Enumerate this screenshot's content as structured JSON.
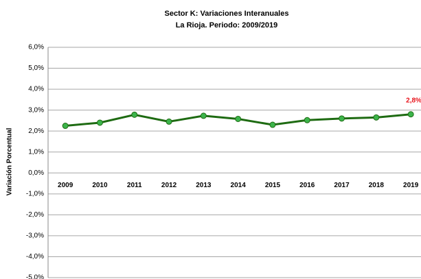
{
  "chart_data": {
    "type": "line",
    "title": "Sector K: Variaciones Interanuales",
    "subtitle": "La Rioja. Periodo: 2009/2019",
    "y_label": "Variación Porcentual",
    "categories": [
      "2009",
      "2010",
      "2011",
      "2012",
      "2013",
      "2014",
      "2015",
      "2016",
      "2017",
      "2018",
      "2019"
    ],
    "series": [
      {
        "name": "Sector K",
        "color": "#1e6b12",
        "marker_color": "#3cb44b",
        "values": [
          2.25,
          2.4,
          2.78,
          2.45,
          2.73,
          2.58,
          2.3,
          2.52,
          2.6,
          2.65,
          2.8
        ],
        "value_labels": [
          null,
          null,
          null,
          null,
          null,
          null,
          null,
          null,
          null,
          null,
          "2,8%"
        ]
      }
    ],
    "ylim": [
      -5,
      6
    ],
    "yticks": [
      {
        "value": -5,
        "label": "-5,0%"
      },
      {
        "value": -4,
        "label": "-4,0%"
      },
      {
        "value": -3,
        "label": "-3,0%"
      },
      {
        "value": -2,
        "label": "-2,0%"
      },
      {
        "value": -1,
        "label": "-1,0%"
      },
      {
        "value": 0,
        "label": "0,0%"
      },
      {
        "value": 1,
        "label": "1,0%"
      },
      {
        "value": 2,
        "label": "2,0%"
      },
      {
        "value": 3,
        "label": "3,0%"
      },
      {
        "value": 4,
        "label": "4,0%"
      },
      {
        "value": 5,
        "label": "5,0%"
      },
      {
        "value": 6,
        "label": "6,0%"
      }
    ],
    "grid": true
  }
}
